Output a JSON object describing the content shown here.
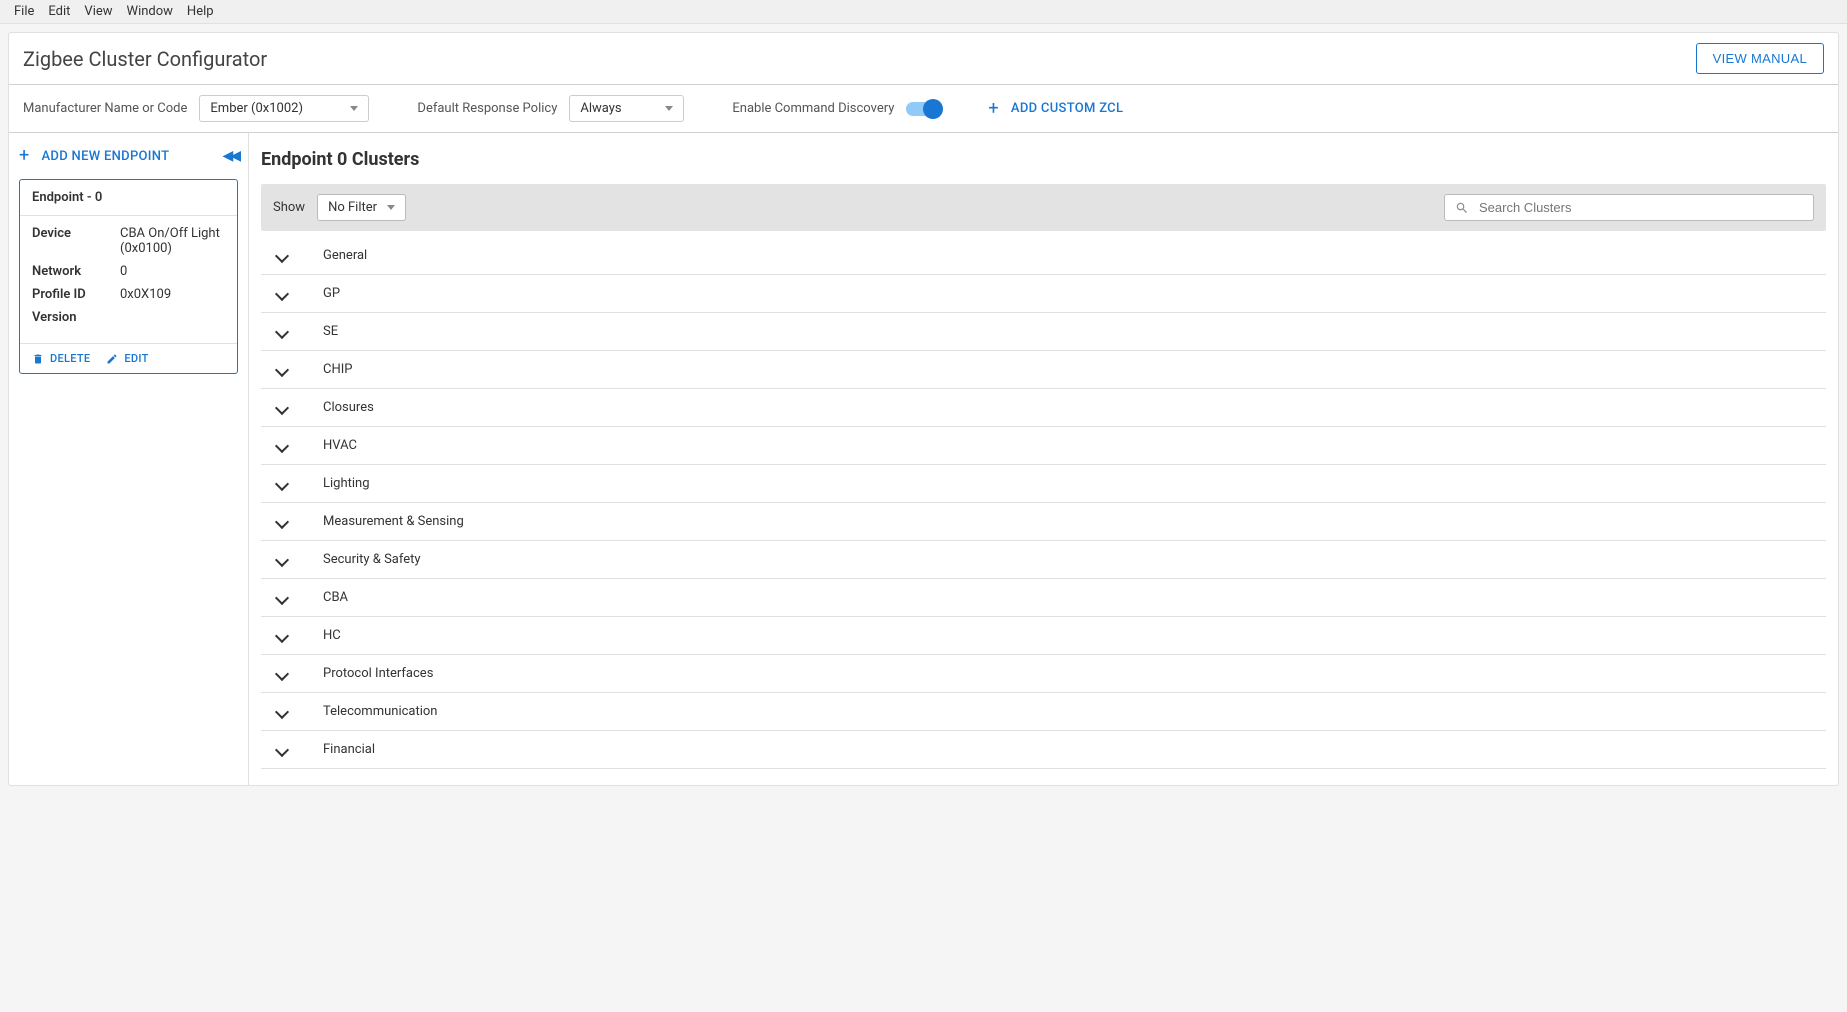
{
  "menubar": [
    "File",
    "Edit",
    "View",
    "Window",
    "Help"
  ],
  "title": "Zigbee Cluster Configurator",
  "view_manual": "VIEW MANUAL",
  "config_bar": {
    "manufacturer_label": "Manufacturer Name or Code",
    "manufacturer_value": "Ember (0x1002)",
    "response_policy_label": "Default Response Policy",
    "response_policy_value": "Always",
    "enable_discovery_label": "Enable Command Discovery",
    "add_custom_zcl": "ADD CUSTOM ZCL"
  },
  "sidebar": {
    "add_endpoint": "ADD NEW ENDPOINT",
    "endpoint_header": "Endpoint - 0",
    "props": {
      "device_label": "Device",
      "device_value": "CBA On/Off Light (0x0100)",
      "network_label": "Network",
      "network_value": "0",
      "profile_label": "Profile ID",
      "profile_value": "0x0X109",
      "version_label": "Version",
      "version_value": ""
    },
    "delete": "DELETE",
    "edit": "EDIT"
  },
  "main": {
    "title": "Endpoint 0 Clusters",
    "show_label": "Show",
    "filter_value": "No Filter",
    "search_placeholder": "Search Clusters",
    "clusters": [
      "General",
      "GP",
      "SE",
      "CHIP",
      "Closures",
      "HVAC",
      "Lighting",
      "Measurement & Sensing",
      "Security & Safety",
      "CBA",
      "HC",
      "Protocol Interfaces",
      "Telecommunication",
      "Financial"
    ]
  },
  "colors": {
    "accent": "#1976d2",
    "border": "#e0e0e0"
  }
}
